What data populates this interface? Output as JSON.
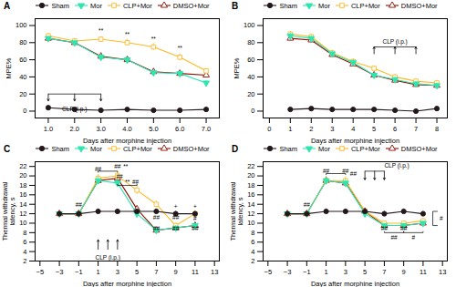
{
  "chart_data": [
    {
      "type": "line",
      "title": "A",
      "x_label": "Days after morphine injection",
      "y_label": "MPE%",
      "xlim": [
        0.5,
        7.5
      ],
      "ylim": [
        -8,
        108
      ],
      "xticks": [
        1,
        2,
        3,
        4,
        5,
        6,
        7
      ],
      "yticks": [
        0,
        20,
        40,
        60,
        80,
        100
      ],
      "grid": false,
      "legend": "upper center",
      "x": [
        1,
        2,
        3,
        4,
        5,
        6,
        7
      ],
      "series": [
        {
          "name": "Sham",
          "marker": "circle",
          "values": [
            4,
            2,
            1,
            2,
            1,
            1,
            2
          ],
          "errors": [
            1,
            1,
            1,
            1,
            1,
            1,
            1
          ]
        },
        {
          "name": "Mor",
          "marker": "triangle-down",
          "values": [
            85,
            80,
            63,
            60,
            45,
            44,
            33
          ],
          "errors": [
            3,
            3,
            4,
            3,
            3,
            3,
            3
          ]
        },
        {
          "name": "CLP+Mor",
          "marker": "open-square",
          "values": [
            88,
            82,
            84,
            80,
            75,
            63,
            47
          ],
          "errors": [
            3,
            3,
            3,
            4,
            4,
            4,
            3
          ]
        },
        {
          "name": "DMSO+Mor",
          "marker": "open-triangle",
          "values": [
            85,
            80,
            64,
            60,
            46,
            44,
            42
          ],
          "errors": [
            3,
            3,
            4,
            3,
            3,
            3,
            3
          ]
        }
      ],
      "arrows": [
        {
          "x": 1,
          "y1": 20,
          "y2": 12
        },
        {
          "x": 2,
          "y1": 20,
          "y2": 12
        },
        {
          "x": 3,
          "y1": 20,
          "y2": 12
        }
      ],
      "lines": [
        {
          "x1": 1,
          "y1": 20,
          "x2": 3,
          "y2": 20
        }
      ],
      "annotations": [
        {
          "text": "CLP (i.p.)",
          "x": 2,
          "y": 5,
          "anchor": "top"
        },
        {
          "text": "**",
          "x": 3,
          "y": 91,
          "anchor": "bottom"
        },
        {
          "text": "**",
          "x": 4,
          "y": 87,
          "anchor": "bottom"
        },
        {
          "text": "**",
          "x": 5,
          "y": 82,
          "anchor": "bottom"
        },
        {
          "text": "**",
          "x": 6,
          "y": 71,
          "anchor": "bottom"
        }
      ]
    },
    {
      "type": "line",
      "title": "B",
      "x_label": "Days after morphine injection",
      "y_label": "MPE%",
      "xlim": [
        -0.3,
        8.5
      ],
      "ylim": [
        -8,
        108
      ],
      "xticks": [
        0,
        1,
        2,
        3,
        4,
        5,
        6,
        7,
        8
      ],
      "yticks": [
        0,
        20,
        40,
        60,
        80,
        100
      ],
      "grid": false,
      "legend": "upper center",
      "x": [
        1,
        2,
        3,
        4,
        5,
        6,
        7,
        8
      ],
      "series": [
        {
          "name": "Sham",
          "marker": "circle",
          "values": [
            2,
            3,
            2,
            2,
            2,
            1,
            0,
            3
          ],
          "errors": [
            1,
            1,
            1,
            1,
            1,
            1,
            1,
            1
          ]
        },
        {
          "name": "Mor",
          "marker": "triangle-down",
          "values": [
            88,
            85,
            67,
            57,
            42,
            37,
            32,
            30
          ],
          "errors": [
            3,
            3,
            3,
            3,
            3,
            3,
            3,
            3
          ]
        },
        {
          "name": "CLP+Mor",
          "marker": "open-square",
          "values": [
            90,
            87,
            68,
            58,
            50,
            40,
            35,
            33
          ],
          "errors": [
            3,
            3,
            3,
            3,
            3,
            3,
            3,
            3
          ]
        },
        {
          "name": "DMSO+Mor",
          "marker": "open-triangle",
          "values": [
            85,
            83,
            66,
            55,
            42,
            36,
            31,
            30
          ],
          "errors": [
            3,
            3,
            3,
            3,
            3,
            3,
            3,
            3
          ]
        }
      ],
      "arrows": [
        {
          "x": 5,
          "y1": 67,
          "y2": 75
        },
        {
          "x": 6,
          "y1": 67,
          "y2": 75
        },
        {
          "x": 7,
          "y1": 67,
          "y2": 75
        }
      ],
      "lines": [
        {
          "x1": 5,
          "y1": 75,
          "x2": 7,
          "y2": 75
        }
      ],
      "annotations": [
        {
          "text": "CLP (i.p.)",
          "x": 6,
          "y": 79,
          "anchor": "bottom"
        }
      ]
    },
    {
      "type": "line",
      "title": "C",
      "x_label": "Days after morphine injection",
      "y_label": "Thermal withdrawal\nlatency, s",
      "xlim": [
        -5.5,
        13.5
      ],
      "ylim": [
        2,
        23
      ],
      "xticks": [
        -5,
        -3,
        -1,
        1,
        3,
        5,
        7,
        9,
        11,
        13
      ],
      "yticks": [
        2,
        4,
        6,
        8,
        10,
        12,
        14,
        16,
        18,
        20,
        22
      ],
      "grid": false,
      "legend": "upper center",
      "x": [
        -3,
        -1,
        1,
        3,
        5,
        7,
        9,
        11
      ],
      "series": [
        {
          "name": "Sham",
          "marker": "circle",
          "values": [
            12,
            12,
            12.5,
            12.5,
            12.5,
            12.5,
            12,
            12
          ],
          "errors": [
            0.5,
            0.5,
            0.5,
            0.5,
            0.5,
            0.5,
            0.5,
            0.5
          ]
        },
        {
          "name": "Mor",
          "marker": "triangle-down",
          "values": [
            12,
            12,
            19,
            18.5,
            12,
            8.5,
            9,
            9.5
          ],
          "errors": [
            0.5,
            0.5,
            0.8,
            0.8,
            0.5,
            0.5,
            0.5,
            0.5
          ]
        },
        {
          "name": "CLP+Mor",
          "marker": "open-square",
          "values": [
            12,
            12,
            19.5,
            20,
            17,
            14,
            9.5,
            12
          ],
          "errors": [
            0.5,
            0.5,
            0.8,
            0.8,
            1.0,
            0.7,
            0.5,
            0.5
          ]
        },
        {
          "name": "DMSO+Mor",
          "marker": "open-triangle",
          "values": [
            12,
            12,
            19,
            19.5,
            13,
            8.5,
            9,
            9.5
          ],
          "errors": [
            0.5,
            0.5,
            0.8,
            0.8,
            0.5,
            0.5,
            0.5,
            0.5
          ]
        }
      ],
      "arrows": [
        {
          "x": 1,
          "y1": 4.5,
          "y2": 6.5
        },
        {
          "x": 2,
          "y1": 4.5,
          "y2": 6.5
        },
        {
          "x": 3,
          "y1": 4.5,
          "y2": 6.5
        }
      ],
      "lines": [
        {
          "x1": 1,
          "y1": 21.0,
          "x2": 3,
          "y2": 21.0
        },
        {
          "x1": 1,
          "y1": 20.7,
          "x2": 1,
          "y2": 21.0
        },
        {
          "x1": 3,
          "y1": 20.7,
          "x2": 3,
          "y2": 21.0
        },
        {
          "x1": 3,
          "y1": 18.0,
          "x2": 5,
          "y2": 18.0
        },
        {
          "x1": 3,
          "y1": 18.0,
          "x2": 3,
          "y2": 18.3
        },
        {
          "x1": 5,
          "y1": 18.0,
          "x2": 5,
          "y2": 18.3
        }
      ],
      "annotations": [
        {
          "text": "CLP (i.p.)",
          "x": 2,
          "y": 3.2,
          "anchor": "top"
        },
        {
          "text": "##",
          "x": -1,
          "y": 13.5,
          "anchor": "bottom"
        },
        {
          "text": "##",
          "x": 1,
          "y": 21.0,
          "anchor": "bottom"
        },
        {
          "text": "##",
          "x": 3,
          "y": 21.5,
          "anchor": "bottom"
        },
        {
          "text": "**",
          "x": 3.0,
          "y": 21.5,
          "anchor": "bottom"
        },
        {
          "text": "##",
          "x": 3.2,
          "y": 19.5,
          "anchor": "bottom"
        },
        {
          "text": "**",
          "x": 3.8,
          "y": 18.3,
          "anchor": "bottom"
        },
        {
          "text": "##",
          "x": 4.5,
          "y": 18.3,
          "anchor": "bottom"
        },
        {
          "text": "##",
          "x": 7,
          "y": 10.8,
          "anchor": "bottom"
        },
        {
          "text": "##",
          "x": 9,
          "y": 10.8,
          "anchor": "bottom"
        },
        {
          "text": "##",
          "x": 7,
          "y": 8.5,
          "anchor": "bottom"
        },
        {
          "text": "##",
          "x": 9,
          "y": 8.5,
          "anchor": "bottom"
        },
        {
          "text": "##",
          "x": 11,
          "y": 8.5,
          "anchor": "bottom"
        },
        {
          "text": "+",
          "x": 9,
          "y": 13.0,
          "anchor": "bottom"
        },
        {
          "text": "+",
          "x": 11,
          "y": 13.0,
          "anchor": "bottom"
        },
        {
          "text": "#",
          "x": 11,
          "y": 10.5,
          "anchor": "bottom"
        }
      ]
    },
    {
      "type": "line",
      "title": "D",
      "x_label": "Days after morphine injection",
      "y_label": "Thermal withdrawal\nlatency, s",
      "xlim": [
        -5.5,
        13.5
      ],
      "ylim": [
        2,
        23
      ],
      "xticks": [
        -5,
        -3,
        -1,
        1,
        3,
        5,
        7,
        9,
        11,
        13
      ],
      "yticks": [
        2,
        4,
        6,
        8,
        10,
        12,
        14,
        16,
        18,
        20,
        22
      ],
      "grid": false,
      "legend": "upper center",
      "x": [
        -3,
        -1,
        1,
        3,
        5,
        7,
        9,
        11
      ],
      "series": [
        {
          "name": "Sham",
          "marker": "circle",
          "values": [
            12,
            12,
            12.5,
            12.5,
            12.5,
            12,
            12.5,
            12
          ],
          "errors": [
            0.5,
            0.5,
            0.5,
            0.5,
            0.5,
            0.5,
            0.5,
            0.5
          ]
        },
        {
          "name": "Mor",
          "marker": "triangle-down",
          "values": [
            12,
            12,
            19,
            18.5,
            12,
            9.5,
            9.5,
            10
          ],
          "errors": [
            0.5,
            0.5,
            0.8,
            0.8,
            0.5,
            0.5,
            0.5,
            0.5
          ]
        },
        {
          "name": "CLP+Mor",
          "marker": "open-square",
          "values": [
            12,
            12,
            19,
            19,
            12.5,
            10,
            10,
            10.5
          ],
          "errors": [
            0.5,
            0.5,
            0.8,
            0.8,
            0.5,
            0.5,
            0.5,
            0.5
          ]
        },
        {
          "name": "DMSO+Mor",
          "marker": "open-triangle",
          "values": [
            12,
            12,
            19,
            18.5,
            12.5,
            9.5,
            9.5,
            10
          ],
          "errors": [
            0.5,
            0.5,
            0.8,
            0.8,
            0.5,
            0.5,
            0.5,
            0.5
          ]
        }
      ],
      "arrows": [
        {
          "x": 5,
          "y1": 21.0,
          "y2": 19.2
        },
        {
          "x": 6,
          "y1": 21.0,
          "y2": 19.2
        },
        {
          "x": 7,
          "y1": 21.0,
          "y2": 19.2
        }
      ],
      "lines": [
        {
          "x1": 5,
          "y1": 21.0,
          "x2": 7,
          "y2": 21.0
        },
        {
          "x1": 1,
          "y1": 20.5,
          "x2": 3,
          "y2": 20.5
        },
        {
          "x1": 1,
          "y1": 20.2,
          "x2": 1,
          "y2": 20.5
        },
        {
          "x1": 3,
          "y1": 20.2,
          "x2": 3,
          "y2": 20.5
        },
        {
          "x1": 7,
          "y1": 8.0,
          "x2": 9,
          "y2": 8.0
        },
        {
          "x1": 7,
          "y1": 8.0,
          "x2": 7,
          "y2": 8.3
        },
        {
          "x1": 9,
          "y1": 8.0,
          "x2": 9,
          "y2": 8.3
        },
        {
          "x1": 9,
          "y1": 8.0,
          "x2": 11,
          "y2": 8.0
        },
        {
          "x1": 9,
          "y1": 8.0,
          "x2": 9,
          "y2": 8.3
        },
        {
          "x1": 11,
          "y1": 8.0,
          "x2": 11,
          "y2": 8.3
        },
        {
          "x1": 12,
          "y1": 9.5,
          "x2": 12.5,
          "y2": 9.5
        },
        {
          "x1": 12,
          "y1": 12.5,
          "x2": 12.5,
          "y2": 12.5
        },
        {
          "x1": 12,
          "y1": 9.5,
          "x2": 12,
          "y2": 12.5
        }
      ],
      "annotations": [
        {
          "text": "CLP (i.p.)",
          "x": 7.0,
          "y": 21.8,
          "anchor": "bottom-left"
        },
        {
          "text": "##",
          "x": -1,
          "y": 13.5,
          "anchor": "bottom"
        },
        {
          "text": "##",
          "x": 1,
          "y": 20.5,
          "anchor": "bottom"
        },
        {
          "text": "##",
          "x": 3,
          "y": 20.5,
          "anchor": "bottom"
        },
        {
          "text": "##",
          "x": 3.3,
          "y": 20.5,
          "anchor": "left"
        },
        {
          "text": "##",
          "x": 7,
          "y": 8.5,
          "anchor": "bottom"
        },
        {
          "text": "##",
          "x": 9,
          "y": 8.5,
          "anchor": "bottom"
        },
        {
          "text": "##",
          "x": 8.0,
          "y": 7.5,
          "anchor": "top"
        },
        {
          "text": "#",
          "x": 10.0,
          "y": 7.5,
          "anchor": "top"
        },
        {
          "text": "#",
          "x": 12.7,
          "y": 11,
          "anchor": "left"
        }
      ]
    }
  ]
}
